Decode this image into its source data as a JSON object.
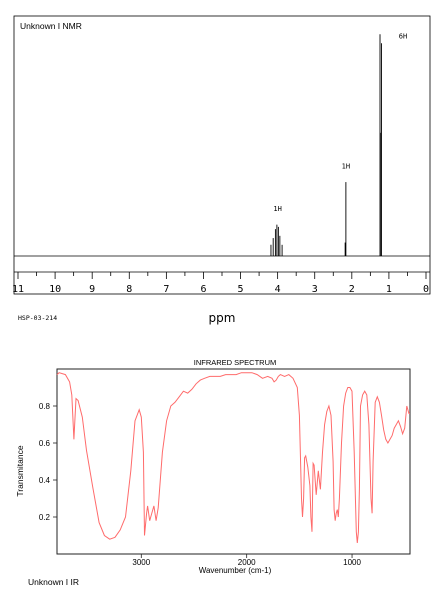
{
  "nmr": {
    "title": "Unknown I NMR",
    "code": "HSP-03-214",
    "chart_data": {
      "type": "line",
      "title": "Unknown I NMR",
      "xlabel": "ppm",
      "ylabel": "",
      "xlim": [
        11,
        0
      ],
      "x_reversed": true,
      "xticks": [
        11,
        10,
        9,
        8,
        7,
        6,
        5,
        4,
        3,
        2,
        1,
        0
      ],
      "grid": false,
      "peaks": [
        {
          "ppm": 4.18,
          "height": 0.05
        },
        {
          "ppm": 4.12,
          "height": 0.08
        },
        {
          "ppm": 4.06,
          "height": 0.12
        },
        {
          "ppm": 4.02,
          "height": 0.14
        },
        {
          "ppm": 3.98,
          "height": 0.13
        },
        {
          "ppm": 3.94,
          "height": 0.09
        },
        {
          "ppm": 3.88,
          "height": 0.05
        },
        {
          "ppm": 2.16,
          "height": 0.33
        },
        {
          "ppm": 2.18,
          "height": 0.06
        },
        {
          "ppm": 1.24,
          "height": 0.99
        },
        {
          "ppm": 1.2,
          "height": 0.95
        },
        {
          "ppm": 1.23,
          "height": 0.55
        }
      ],
      "integrations": [
        {
          "label": "1H",
          "ppm": 4.0,
          "height": 0.2
        },
        {
          "label": "1H",
          "ppm": 2.16,
          "height": 0.39
        },
        {
          "label": "6H",
          "ppm": 0.62,
          "height": 0.97
        }
      ],
      "baseline_height": 0.0
    }
  },
  "ir": {
    "caption": "Unknown I IR",
    "chart_data": {
      "type": "line",
      "title": "INFRARED SPECTRUM",
      "xlabel": "Wavenumber (cm-1)",
      "ylabel": "Transmitance",
      "xlim": [
        3800,
        450
      ],
      "ylim": [
        0.0,
        1.0
      ],
      "xticks": [
        3000,
        2000,
        1000
      ],
      "yticks": [
        0.2,
        0.4,
        0.6,
        0.8
      ],
      "grid": false,
      "color": "#ff6b6b",
      "x": [
        3800,
        3780,
        3720,
        3680,
        3660,
        3640,
        3620,
        3600,
        3560,
        3520,
        3460,
        3400,
        3350,
        3300,
        3250,
        3200,
        3150,
        3100,
        3060,
        3020,
        3000,
        2980,
        2970,
        2950,
        2940,
        2920,
        2900,
        2880,
        2860,
        2840,
        2800,
        2760,
        2720,
        2680,
        2640,
        2600,
        2560,
        2520,
        2480,
        2440,
        2400,
        2350,
        2300,
        2250,
        2200,
        2150,
        2100,
        2050,
        2000,
        1950,
        1900,
        1850,
        1800,
        1760,
        1740,
        1720,
        1700,
        1680,
        1640,
        1600,
        1560,
        1520,
        1500,
        1480,
        1470,
        1460,
        1450,
        1440,
        1420,
        1400,
        1390,
        1380,
        1370,
        1360,
        1340,
        1320,
        1300,
        1280,
        1260,
        1240,
        1220,
        1200,
        1180,
        1170,
        1160,
        1150,
        1140,
        1130,
        1120,
        1100,
        1080,
        1060,
        1040,
        1020,
        1000,
        980,
        960,
        950,
        940,
        930,
        920,
        900,
        880,
        860,
        840,
        820,
        810,
        800,
        780,
        760,
        740,
        720,
        700,
        680,
        660,
        640,
        620,
        600,
        580,
        560,
        540,
        520,
        500,
        480,
        460,
        450
      ],
      "y": [
        0.97,
        0.98,
        0.97,
        0.93,
        0.86,
        0.62,
        0.84,
        0.83,
        0.74,
        0.56,
        0.36,
        0.17,
        0.1,
        0.08,
        0.09,
        0.13,
        0.2,
        0.45,
        0.72,
        0.78,
        0.74,
        0.55,
        0.1,
        0.22,
        0.26,
        0.18,
        0.22,
        0.26,
        0.18,
        0.25,
        0.55,
        0.72,
        0.8,
        0.82,
        0.85,
        0.88,
        0.87,
        0.89,
        0.92,
        0.94,
        0.95,
        0.96,
        0.96,
        0.96,
        0.97,
        0.97,
        0.97,
        0.98,
        0.98,
        0.98,
        0.97,
        0.95,
        0.96,
        0.95,
        0.93,
        0.94,
        0.96,
        0.97,
        0.96,
        0.97,
        0.95,
        0.9,
        0.75,
        0.3,
        0.2,
        0.3,
        0.52,
        0.53,
        0.47,
        0.37,
        0.2,
        0.12,
        0.49,
        0.48,
        0.32,
        0.45,
        0.35,
        0.55,
        0.7,
        0.77,
        0.8,
        0.75,
        0.5,
        0.24,
        0.18,
        0.22,
        0.24,
        0.2,
        0.3,
        0.6,
        0.8,
        0.87,
        0.9,
        0.9,
        0.88,
        0.55,
        0.12,
        0.06,
        0.12,
        0.35,
        0.8,
        0.86,
        0.88,
        0.86,
        0.7,
        0.3,
        0.22,
        0.5,
        0.82,
        0.85,
        0.82,
        0.75,
        0.67,
        0.62,
        0.6,
        0.62,
        0.64,
        0.68,
        0.7,
        0.72,
        0.69,
        0.65,
        0.68,
        0.8,
        0.76,
        0.76
      ]
    }
  }
}
